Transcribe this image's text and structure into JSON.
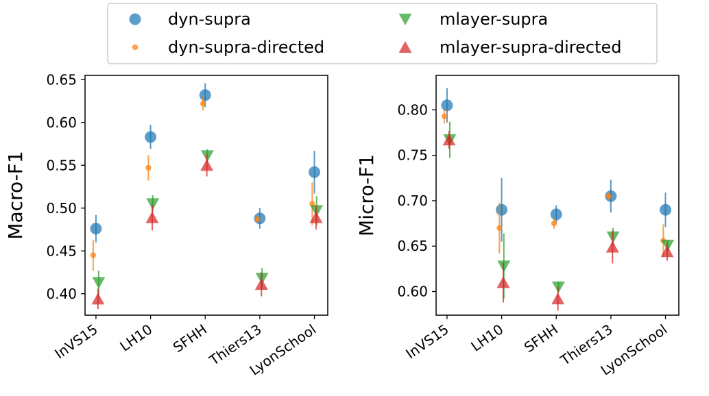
{
  "legend": {
    "entries": [
      {
        "label": "dyn-supra",
        "marker": "circle-large",
        "color": "#1f77b4"
      },
      {
        "label": "dyn-supra-directed",
        "marker": "circle-small",
        "color": "#ff7f0e"
      },
      {
        "label": "mlayer-supra",
        "marker": "triangle-down",
        "color": "#2ca02c"
      },
      {
        "label": "mlayer-supra-directed",
        "marker": "triangle-up",
        "color": "#d62728"
      }
    ],
    "placement": "top-center",
    "columns": 2
  },
  "chart_data": [
    {
      "type": "scatter",
      "ylabel": "Macro-F1",
      "xlabel": "",
      "categories": [
        "InVS15",
        "LH10",
        "SFHH",
        "Thiers13",
        "LyonSchool"
      ],
      "ylim": [
        0.375,
        0.655
      ],
      "yticks": [
        0.4,
        0.45,
        0.5,
        0.55,
        0.6,
        0.65
      ],
      "yticklabels": [
        "0.40",
        "0.45",
        "0.50",
        "0.55",
        "0.60",
        "0.65"
      ],
      "grid": false,
      "series": [
        {
          "name": "dyn-supra",
          "values": [
            0.476,
            0.583,
            0.632,
            0.488,
            0.542
          ],
          "errors": [
            0.016,
            0.014,
            0.014,
            0.012,
            0.025
          ]
        },
        {
          "name": "dyn-supra-directed",
          "values": [
            0.445,
            0.547,
            0.622,
            0.487,
            0.505
          ],
          "errors": [
            0.018,
            0.015,
            0.008,
            0.004,
            0.025
          ]
        },
        {
          "name": "mlayer-supra",
          "values": [
            0.413,
            0.505,
            0.561,
            0.418,
            0.497
          ],
          "errors": [
            0.014,
            0.01,
            0.008,
            0.012,
            0.017
          ]
        },
        {
          "name": "mlayer-supra-directed",
          "values": [
            0.394,
            0.489,
            0.55,
            0.411,
            0.489
          ],
          "errors": [
            0.012,
            0.015,
            0.013,
            0.014,
            0.014
          ]
        }
      ]
    },
    {
      "type": "scatter",
      "ylabel": "Micro-F1",
      "xlabel": "",
      "categories": [
        "InVS15",
        "LH10",
        "SFHH",
        "Thiers13",
        "LyonSchool"
      ],
      "ylim": [
        0.574,
        0.838
      ],
      "yticks": [
        0.6,
        0.65,
        0.7,
        0.75,
        0.8
      ],
      "yticklabels": [
        "0.60",
        "0.65",
        "0.70",
        "0.75",
        "0.80"
      ],
      "grid": false,
      "series": [
        {
          "name": "dyn-supra",
          "values": [
            0.805,
            0.69,
            0.685,
            0.705,
            0.69
          ],
          "errors": [
            0.019,
            0.035,
            0.01,
            0.018,
            0.019
          ]
        },
        {
          "name": "dyn-supra-directed",
          "values": [
            0.793,
            0.67,
            0.675,
            0.705,
            0.656
          ],
          "errors": [
            0.008,
            0.028,
            0.006,
            0.004,
            0.018
          ]
        },
        {
          "name": "mlayer-supra",
          "values": [
            0.767,
            0.628,
            0.605,
            0.66,
            0.651
          ],
          "errors": [
            0.02,
            0.036,
            0.006,
            0.01,
            0.006
          ]
        },
        {
          "name": "mlayer-supra-directed",
          "values": [
            0.767,
            0.61,
            0.592,
            0.649,
            0.644
          ],
          "errors": [
            0.01,
            0.022,
            0.013,
            0.018,
            0.01
          ]
        }
      ]
    }
  ]
}
